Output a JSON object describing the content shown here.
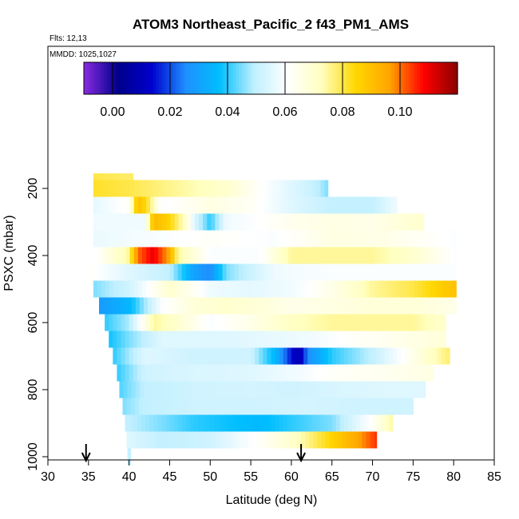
{
  "chart_data": {
    "type": "heatmap",
    "title": "ATOM3 Northeast_Pacific_2 f43_PM1_AMS",
    "flights_label": "Flts: 12,13",
    "dates_label": "MMDD: 1025,1027",
    "xlabel": "Latitude (deg N)",
    "ylabel": "PSXC (mbar)",
    "xlim": [
      30,
      85
    ],
    "ylim": [
      1000,
      100
    ],
    "y_reversed": true,
    "x_ticks": [
      "30",
      "35",
      "40",
      "45",
      "50",
      "55",
      "60",
      "65",
      "70",
      "75",
      "80",
      "85"
    ],
    "y_ticks": [
      "200",
      "400",
      "600",
      "800",
      "1000"
    ],
    "colorbar": {
      "range": [
        -0.01,
        0.12
      ],
      "ticks": [
        "0.00",
        "0.02",
        "0.04",
        "0.06",
        "0.08",
        "0.10"
      ],
      "colors": [
        "#8a2be2",
        "#00008b",
        "#0000cd",
        "#1e90ff",
        "#00bfff",
        "#bfefff",
        "#ffffff",
        "#ffffbf",
        "#ffd700",
        "#ffa500",
        "#ff0000",
        "#8b0000"
      ]
    },
    "arrows_at_lat": [
      34.7,
      61.2
    ],
    "rows": [
      {
        "p": 180,
        "lat0": 35.6,
        "lat1": 40.5,
        "anchors": [
          [
            35.6,
            0.08
          ],
          [
            40.5,
            0.078
          ]
        ]
      },
      {
        "p": 200,
        "lat0": 35.6,
        "lat1": 64.5,
        "anchors": [
          [
            35.6,
            0.082
          ],
          [
            40,
            0.08
          ],
          [
            46,
            0.075
          ],
          [
            52,
            0.07
          ],
          [
            57,
            0.06
          ],
          [
            60,
            0.055
          ],
          [
            63,
            0.05
          ],
          [
            64.5,
            0.045
          ]
        ]
      },
      {
        "p": 250,
        "lat0": 35.6,
        "lat1": 73,
        "anchors": [
          [
            35.6,
            0.056
          ],
          [
            40,
            0.062
          ],
          [
            41,
            0.09
          ],
          [
            42,
            0.085
          ],
          [
            44,
            0.06
          ],
          [
            50,
            0.066
          ],
          [
            55,
            0.063
          ],
          [
            60,
            0.055
          ],
          [
            65,
            0.05
          ],
          [
            70,
            0.05
          ],
          [
            73,
            0.058
          ]
        ]
      },
      {
        "p": 300,
        "lat0": 35.6,
        "lat1": 76.3,
        "anchors": [
          [
            35.6,
            0.058
          ],
          [
            42,
            0.058
          ],
          [
            43,
            0.092
          ],
          [
            45,
            0.085
          ],
          [
            47,
            0.07
          ],
          [
            48,
            0.055
          ],
          [
            50,
            0.04
          ],
          [
            52,
            0.058
          ],
          [
            60,
            0.064
          ],
          [
            65,
            0.066
          ],
          [
            70,
            0.065
          ],
          [
            76.3,
            0.07
          ]
        ]
      },
      {
        "p": 350,
        "lat0": 35.6,
        "lat1": 80.3,
        "anchors": [
          [
            35.6,
            0.057
          ],
          [
            50,
            0.062
          ],
          [
            58,
            0.06
          ],
          [
            65,
            0.066
          ],
          [
            72,
            0.065
          ],
          [
            80.3,
            0.06
          ]
        ]
      },
      {
        "p": 400,
        "lat0": 35.6,
        "lat1": 80.3,
        "anchors": [
          [
            35.6,
            0.06
          ],
          [
            40,
            0.075
          ],
          [
            41,
            0.1
          ],
          [
            43,
            0.11
          ],
          [
            45,
            0.095
          ],
          [
            46,
            0.075
          ],
          [
            50,
            0.06
          ],
          [
            56,
            0.06
          ],
          [
            60,
            0.075
          ],
          [
            65,
            0.075
          ],
          [
            70,
            0.075
          ],
          [
            75,
            0.07
          ],
          [
            80.3,
            0.06
          ]
        ]
      },
      {
        "p": 450,
        "lat0": 35,
        "lat1": 80.3,
        "anchors": [
          [
            35,
            0.062
          ],
          [
            40,
            0.055
          ],
          [
            45,
            0.05
          ],
          [
            48,
            0.03
          ],
          [
            50,
            0.025
          ],
          [
            52,
            0.045
          ],
          [
            58,
            0.058
          ],
          [
            65,
            0.06
          ],
          [
            72,
            0.06
          ],
          [
            80.3,
            0.06
          ]
        ]
      },
      {
        "p": 500,
        "lat0": 35.6,
        "lat1": 80.3,
        "anchors": [
          [
            35.6,
            0.045
          ],
          [
            40,
            0.052
          ],
          [
            45,
            0.07
          ],
          [
            50,
            0.058
          ],
          [
            55,
            0.056
          ],
          [
            60,
            0.058
          ],
          [
            65,
            0.065
          ],
          [
            70,
            0.075
          ],
          [
            75,
            0.08
          ],
          [
            80.3,
            0.09
          ]
        ]
      },
      {
        "p": 550,
        "lat0": 36.3,
        "lat1": 80.3,
        "anchors": [
          [
            36.3,
            0.028
          ],
          [
            40,
            0.035
          ],
          [
            44,
            0.06
          ],
          [
            48,
            0.068
          ],
          [
            52,
            0.07
          ],
          [
            56,
            0.068
          ],
          [
            60,
            0.065
          ],
          [
            65,
            0.066
          ],
          [
            70,
            0.068
          ],
          [
            75,
            0.068
          ],
          [
            80.3,
            0.065
          ]
        ]
      },
      {
        "p": 600,
        "lat0": 37,
        "lat1": 79,
        "anchors": [
          [
            37,
            0.04
          ],
          [
            40,
            0.048
          ],
          [
            43,
            0.075
          ],
          [
            46,
            0.07
          ],
          [
            50,
            0.06
          ],
          [
            55,
            0.065
          ],
          [
            60,
            0.072
          ],
          [
            65,
            0.075
          ],
          [
            70,
            0.075
          ],
          [
            75,
            0.075
          ],
          [
            79,
            0.07
          ]
        ]
      },
      {
        "p": 650,
        "lat0": 37.5,
        "lat1": 79,
        "anchors": [
          [
            37.5,
            0.038
          ],
          [
            40,
            0.045
          ],
          [
            44,
            0.055
          ],
          [
            48,
            0.055
          ],
          [
            52,
            0.055
          ],
          [
            56,
            0.056
          ],
          [
            62,
            0.058
          ],
          [
            68,
            0.062
          ],
          [
            74,
            0.065
          ],
          [
            79,
            0.068
          ]
        ]
      },
      {
        "p": 700,
        "lat0": 38,
        "lat1": 79.5,
        "anchors": [
          [
            38,
            0.04
          ],
          [
            42,
            0.055
          ],
          [
            48,
            0.052
          ],
          [
            55,
            0.052
          ],
          [
            58,
            0.035
          ],
          [
            60,
            0.015
          ],
          [
            61,
            0.008
          ],
          [
            62,
            0.025
          ],
          [
            65,
            0.04
          ],
          [
            70,
            0.05
          ],
          [
            74,
            0.062
          ],
          [
            79.5,
            0.078
          ]
        ]
      },
      {
        "p": 750,
        "lat0": 38.5,
        "lat1": 77.5,
        "anchors": [
          [
            38.5,
            0.04
          ],
          [
            42,
            0.052
          ],
          [
            48,
            0.054
          ],
          [
            55,
            0.055
          ],
          [
            60,
            0.058
          ],
          [
            65,
            0.062
          ],
          [
            72,
            0.064
          ],
          [
            77.5,
            0.066
          ]
        ]
      },
      {
        "p": 800,
        "lat0": 38.8,
        "lat1": 76.5,
        "anchors": [
          [
            38.8,
            0.042
          ],
          [
            42,
            0.05
          ],
          [
            48,
            0.052
          ],
          [
            55,
            0.053
          ],
          [
            60,
            0.052
          ],
          [
            66,
            0.054
          ],
          [
            72,
            0.055
          ],
          [
            76.5,
            0.055
          ]
        ]
      },
      {
        "p": 850,
        "lat0": 39.2,
        "lat1": 75,
        "anchors": [
          [
            39.2,
            0.045
          ],
          [
            42,
            0.05
          ],
          [
            48,
            0.052
          ],
          [
            55,
            0.052
          ],
          [
            62,
            0.053
          ],
          [
            68,
            0.052
          ],
          [
            75,
            0.052
          ]
        ]
      },
      {
        "p": 900,
        "lat0": 39.5,
        "lat1": 72.5,
        "anchors": [
          [
            39.5,
            0.05
          ],
          [
            44,
            0.045
          ],
          [
            48,
            0.04
          ],
          [
            52,
            0.038
          ],
          [
            56,
            0.036
          ],
          [
            60,
            0.04
          ],
          [
            65,
            0.045
          ],
          [
            70,
            0.062
          ],
          [
            72.5,
            0.075
          ]
        ]
      },
      {
        "p": 950,
        "lat0": 39.7,
        "lat1": 70.5,
        "anchors": [
          [
            39.7,
            0.055
          ],
          [
            44,
            0.05
          ],
          [
            50,
            0.052
          ],
          [
            56,
            0.062
          ],
          [
            60,
            0.07
          ],
          [
            64,
            0.082
          ],
          [
            68,
            0.095
          ],
          [
            70.5,
            0.105
          ]
        ]
      },
      {
        "p": 1000,
        "lat0": 39.8,
        "lat1": 40.2,
        "anchors": [
          [
            39.8,
            0.05
          ],
          [
            40.2,
            0.05
          ]
        ]
      }
    ]
  }
}
